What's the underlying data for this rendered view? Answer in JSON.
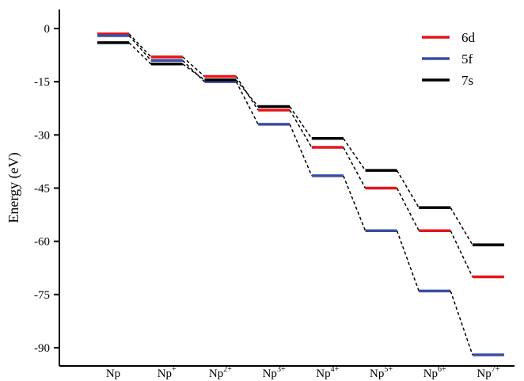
{
  "chart_data": {
    "type": "line",
    "title": "",
    "xlabel": "",
    "ylabel": "Energy (eV)",
    "ylim": [
      -95,
      5
    ],
    "yticks": [
      0,
      -15,
      -30,
      -45,
      -60,
      -75,
      -90
    ],
    "categories": [
      {
        "base": "Np",
        "sup": ""
      },
      {
        "base": "Np",
        "sup": "+"
      },
      {
        "base": "Np",
        "sup": "2+"
      },
      {
        "base": "Np",
        "sup": "3+"
      },
      {
        "base": "Np",
        "sup": "4+"
      },
      {
        "base": "Np",
        "sup": "5+"
      },
      {
        "base": "Np",
        "sup": "6+"
      },
      {
        "base": "Np",
        "sup": "7+"
      }
    ],
    "series": [
      {
        "name": "6d",
        "color": "#e8141c",
        "values": [
          -1.5,
          -8.0,
          -13.5,
          -23.0,
          -33.5,
          -45.0,
          -57.0,
          -70.0
        ]
      },
      {
        "name": "5f",
        "color": "#3a4ea2",
        "values": [
          -2.0,
          -9.0,
          -15.0,
          -27.0,
          -41.5,
          -57.0,
          -74.0,
          -92.0
        ]
      },
      {
        "name": "7s",
        "color": "#000000",
        "values": [
          -4.0,
          -10.0,
          -14.5,
          -22.0,
          -31.0,
          -40.0,
          -50.5,
          -61.0
        ]
      }
    ],
    "legend_position": "top-right",
    "grid": false,
    "connector_style": "dashed"
  }
}
